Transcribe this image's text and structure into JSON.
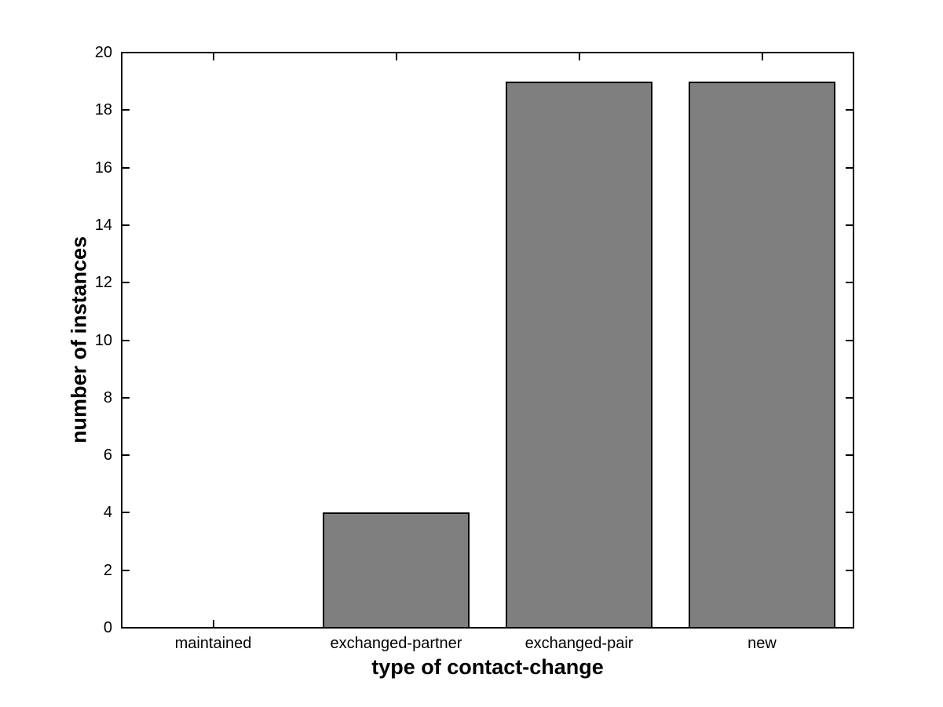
{
  "chart_data": {
    "type": "bar",
    "categories": [
      "maintained",
      "exchanged-partner",
      "exchanged-pair",
      "new"
    ],
    "values": [
      0,
      4,
      19,
      19
    ],
    "title": "",
    "xlabel": "type of contact-change",
    "ylabel": "number of instances",
    "ylim": [
      0,
      20
    ],
    "yticks": [
      0,
      2,
      4,
      6,
      8,
      10,
      12,
      14,
      16,
      18,
      20
    ],
    "bar_width_fraction": 0.8,
    "bar_color": "#7f7f7f",
    "bar_edge_color": "#000000",
    "axis_color": "#000000",
    "background_color": "#ffffff",
    "grid": false,
    "legend_position": "none"
  }
}
